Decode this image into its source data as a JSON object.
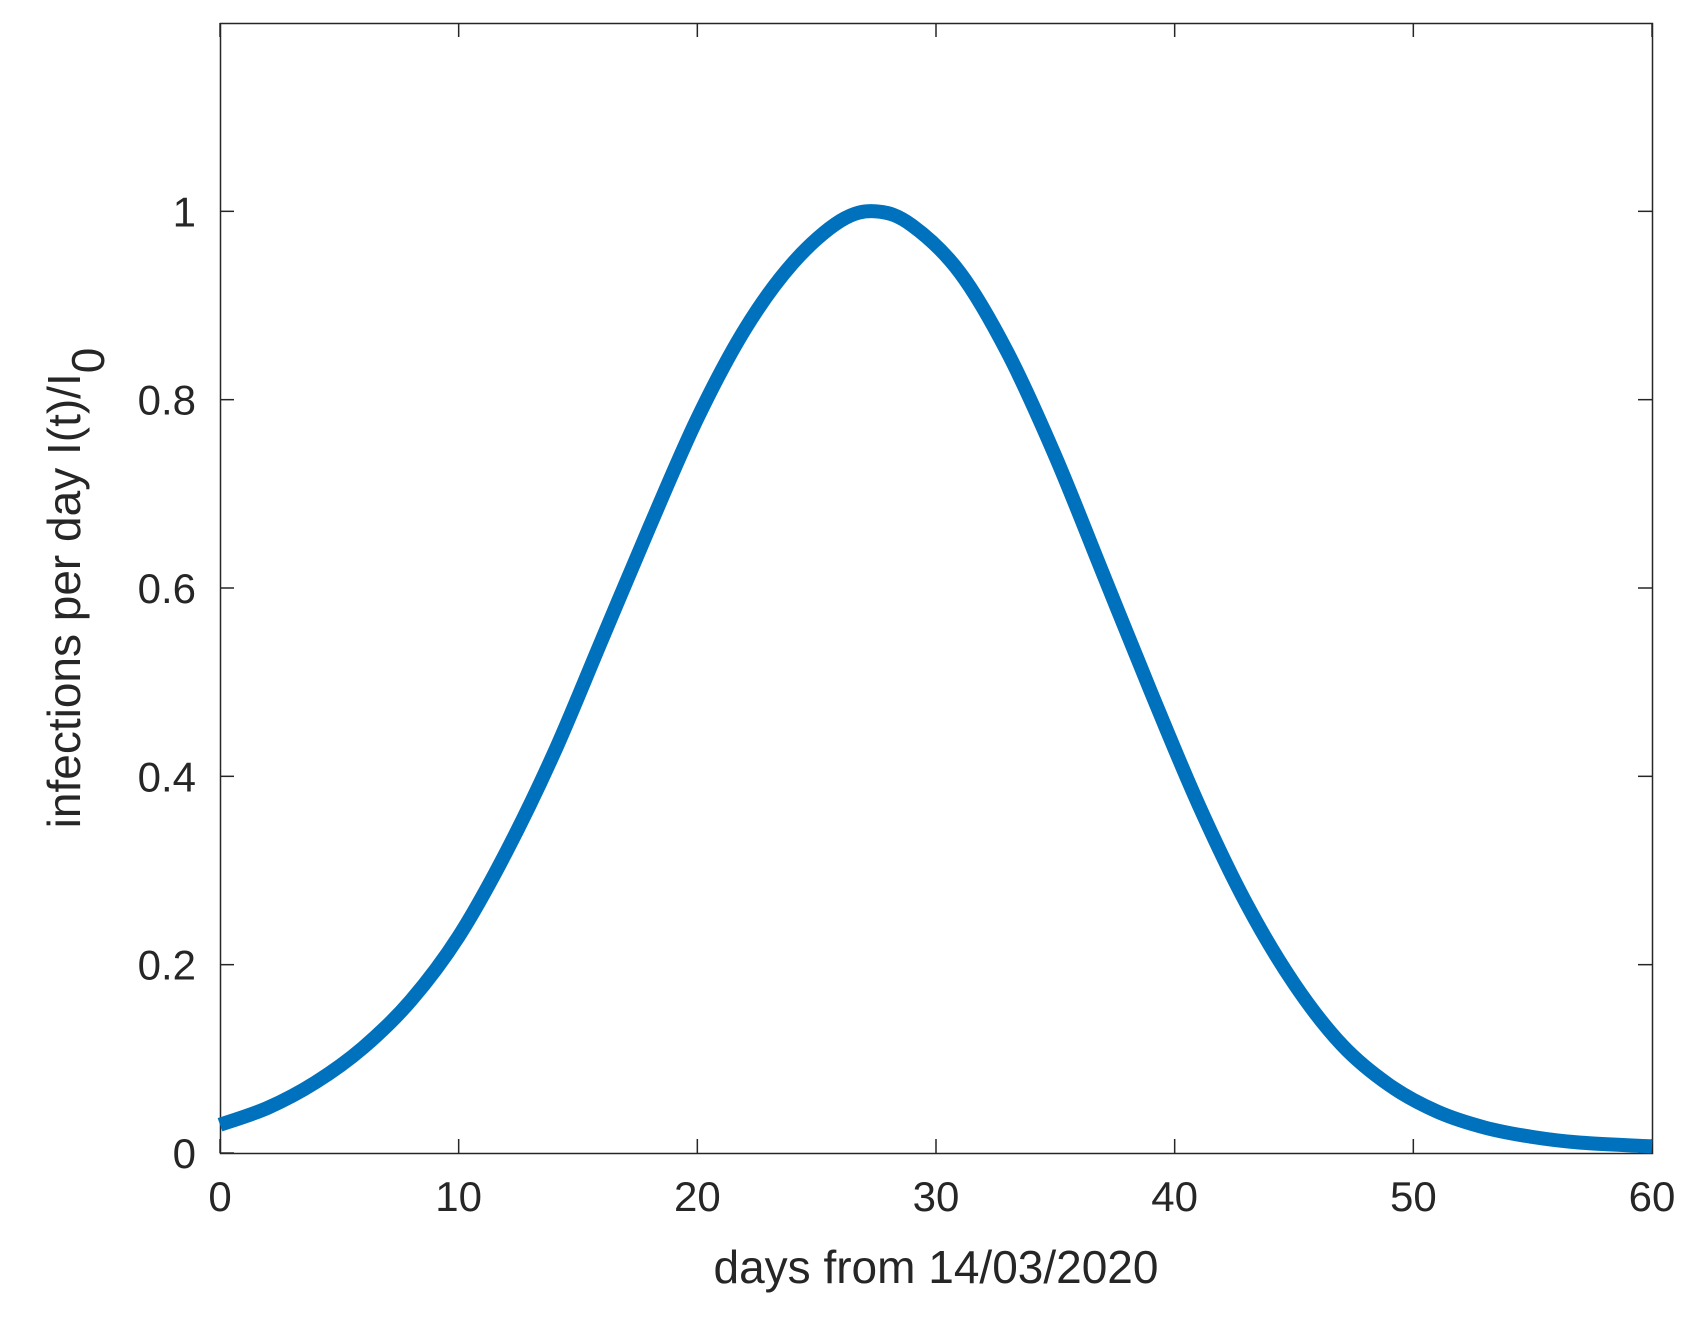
{
  "chart_data": {
    "type": "line",
    "xlabel": "days from 14/03/2020",
    "ylabel": "infections per day I(t)/I",
    "ylabel_subscript": "0",
    "xlim": [
      0,
      60
    ],
    "ylim": [
      0,
      1.2
    ],
    "x_ticks": [
      0,
      10,
      20,
      30,
      40,
      50,
      60
    ],
    "x_tick_labels": [
      "0",
      "10",
      "20",
      "30",
      "40",
      "50",
      "60"
    ],
    "y_ticks": [
      0,
      0.2,
      0.4,
      0.6,
      0.8,
      1
    ],
    "y_tick_labels": [
      "0",
      "0.2",
      "0.4",
      "0.6",
      "0.8",
      "1"
    ],
    "grid": false,
    "series": [
      {
        "color": "#0072BD",
        "x": [
          0,
          2,
          4,
          6,
          8,
          10,
          12,
          14,
          16,
          18,
          20,
          22,
          24,
          26,
          27.5,
          29,
          31,
          33,
          35,
          37,
          39,
          41,
          43,
          45,
          47,
          49,
          51,
          53,
          55,
          57,
          60
        ],
        "y": [
          0.03,
          0.048,
          0.075,
          0.112,
          0.162,
          0.23,
          0.32,
          0.425,
          0.545,
          0.665,
          0.78,
          0.875,
          0.945,
          0.99,
          1.0,
          0.985,
          0.935,
          0.85,
          0.74,
          0.615,
          0.49,
          0.37,
          0.265,
          0.18,
          0.115,
          0.072,
          0.044,
          0.027,
          0.017,
          0.011,
          0.007
        ]
      }
    ]
  }
}
